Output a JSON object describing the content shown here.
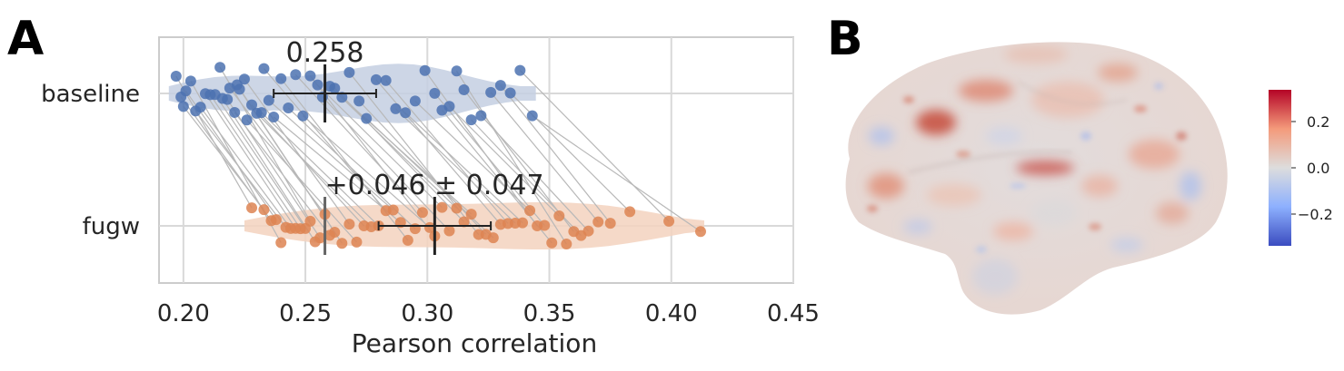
{
  "panels": {
    "a_letter": "A",
    "b_letter": "B"
  },
  "chart_data": [
    {
      "type": "scatter",
      "title": "",
      "xlabel": "Pearson correlation",
      "ylabel": "",
      "xlim": [
        0.19,
        0.45
      ],
      "xticks": [
        "0.20",
        "0.25",
        "0.30",
        "0.35",
        "0.40",
        "0.45"
      ],
      "categories": [
        "baseline",
        "fugw"
      ],
      "grid": true,
      "colors": {
        "baseline": "#4c72b0",
        "fugw": "#dd8452",
        "baseline_violin": "#c4cfe2",
        "fugw_violin": "#f3d2be",
        "pair_line": "#b8b8b8",
        "stats": "#222222"
      },
      "annotations": {
        "baseline_mean_label": "0.258",
        "fugw_diff_label": "+0.046 ± 0.047"
      },
      "series": [
        {
          "category": "baseline",
          "mean": 0.258,
          "std": 0.021,
          "values": [
            0.197,
            0.2,
            0.199,
            0.201,
            0.203,
            0.205,
            0.207,
            0.209,
            0.211,
            0.213,
            0.215,
            0.216,
            0.218,
            0.219,
            0.221,
            0.222,
            0.223,
            0.225,
            0.226,
            0.228,
            0.23,
            0.232,
            0.233,
            0.235,
            0.237,
            0.24,
            0.243,
            0.246,
            0.249,
            0.252,
            0.255,
            0.257,
            0.26,
            0.262,
            0.265,
            0.268,
            0.272,
            0.275,
            0.279,
            0.283,
            0.287,
            0.291,
            0.295,
            0.299,
            0.303,
            0.306,
            0.309,
            0.312,
            0.315,
            0.318,
            0.322,
            0.326,
            0.33,
            0.334,
            0.338,
            0.343
          ]
        },
        {
          "category": "fugw",
          "mean": 0.303,
          "std": 0.023,
          "values": [
            0.228,
            0.233,
            0.236,
            0.238,
            0.24,
            0.242,
            0.244,
            0.246,
            0.248,
            0.25,
            0.252,
            0.254,
            0.256,
            0.258,
            0.26,
            0.262,
            0.265,
            0.268,
            0.271,
            0.274,
            0.277,
            0.28,
            0.283,
            0.286,
            0.289,
            0.292,
            0.295,
            0.298,
            0.301,
            0.303,
            0.306,
            0.309,
            0.312,
            0.315,
            0.318,
            0.321,
            0.324,
            0.327,
            0.33,
            0.333,
            0.336,
            0.339,
            0.342,
            0.345,
            0.348,
            0.351,
            0.354,
            0.357,
            0.36,
            0.363,
            0.366,
            0.37,
            0.375,
            0.383,
            0.399,
            0.412
          ]
        }
      ]
    },
    {
      "type": "heatmap",
      "colorbar": {
        "colormap": "coolwarm",
        "ticks": [
          "0.2",
          "0.0",
          "−0.2"
        ],
        "range": [
          -0.33,
          0.33
        ]
      }
    }
  ]
}
